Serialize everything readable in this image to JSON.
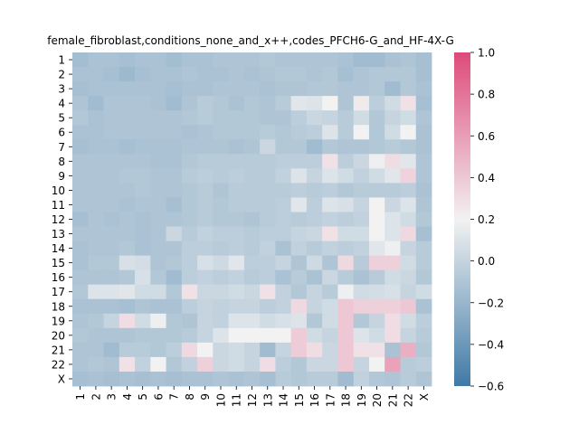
{
  "chart_data": {
    "type": "heatmap",
    "title": "female_fibroblast,conditions_none_and_x++,codes_PFCH6-G_and_HF-4X-G",
    "xlabel": "",
    "ylabel": "",
    "x_categories": [
      "1",
      "2",
      "3",
      "4",
      "5",
      "6",
      "7",
      "8",
      "9",
      "10",
      "11",
      "12",
      "13",
      "14",
      "15",
      "16",
      "17",
      "18",
      "19",
      "20",
      "21",
      "22",
      "X"
    ],
    "y_categories": [
      "1",
      "2",
      "3",
      "4",
      "5",
      "6",
      "7",
      "8",
      "9",
      "10",
      "11",
      "12",
      "13",
      "14",
      "15",
      "16",
      "17",
      "18",
      "19",
      "20",
      "21",
      "22",
      "X"
    ],
    "colorbar": {
      "min": -0.6,
      "max": 1.0,
      "ticks": [
        -0.6,
        -0.4,
        -0.2,
        0.0,
        0.2,
        0.4,
        0.6,
        0.8,
        1.0
      ],
      "low_color": "#3f7aa6",
      "mid_color": "#f2f2f2",
      "high_color": "#de4a7a",
      "center": 0.2
    },
    "values": [
      [
        -0.15,
        -0.12,
        -0.12,
        -0.14,
        -0.12,
        -0.12,
        -0.15,
        -0.12,
        -0.12,
        -0.1,
        -0.1,
        -0.1,
        -0.08,
        -0.1,
        -0.1,
        -0.1,
        -0.1,
        -0.12,
        -0.16,
        -0.16,
        -0.12,
        -0.1,
        -0.14
      ],
      [
        -0.12,
        -0.12,
        -0.14,
        -0.18,
        -0.14,
        -0.12,
        -0.12,
        -0.1,
        -0.12,
        -0.12,
        -0.1,
        -0.12,
        -0.1,
        -0.08,
        -0.08,
        -0.1,
        -0.08,
        -0.14,
        -0.1,
        -0.08,
        -0.08,
        -0.08,
        -0.14
      ],
      [
        -0.14,
        -0.12,
        -0.12,
        -0.12,
        -0.12,
        -0.12,
        -0.14,
        -0.12,
        -0.12,
        -0.1,
        -0.1,
        -0.1,
        -0.12,
        -0.1,
        -0.1,
        -0.08,
        -0.08,
        -0.1,
        -0.1,
        -0.08,
        -0.16,
        -0.08,
        -0.12
      ],
      [
        -0.1,
        -0.16,
        -0.1,
        -0.1,
        -0.1,
        -0.12,
        -0.16,
        -0.1,
        -0.06,
        -0.08,
        -0.12,
        -0.08,
        -0.1,
        -0.06,
        0.12,
        0.1,
        0.2,
        -0.1,
        0.24,
        -0.04,
        0.05,
        0.28,
        -0.14
      ],
      [
        -0.08,
        -0.12,
        -0.1,
        -0.1,
        -0.1,
        -0.1,
        -0.1,
        -0.08,
        -0.06,
        -0.08,
        -0.08,
        -0.08,
        -0.1,
        -0.1,
        -0.04,
        0.02,
        0.0,
        -0.06,
        0.05,
        -0.08,
        0.0,
        0.05,
        -0.1
      ],
      [
        -0.12,
        -0.12,
        -0.1,
        -0.1,
        -0.1,
        -0.1,
        -0.1,
        -0.12,
        -0.1,
        -0.08,
        -0.08,
        -0.08,
        -0.06,
        -0.08,
        -0.06,
        -0.04,
        0.1,
        -0.06,
        0.2,
        -0.08,
        0.05,
        0.2,
        -0.12
      ],
      [
        -0.14,
        -0.12,
        -0.12,
        -0.14,
        -0.12,
        -0.12,
        -0.12,
        -0.1,
        -0.1,
        -0.1,
        -0.12,
        -0.1,
        0.02,
        -0.08,
        -0.08,
        -0.16,
        -0.08,
        -0.1,
        -0.1,
        -0.08,
        -0.06,
        -0.08,
        -0.12
      ],
      [
        -0.1,
        -0.1,
        -0.1,
        -0.1,
        -0.1,
        -0.12,
        -0.12,
        -0.08,
        -0.06,
        -0.06,
        -0.06,
        -0.06,
        -0.06,
        -0.04,
        -0.04,
        -0.04,
        0.28,
        -0.04,
        0.02,
        0.18,
        0.3,
        0.12,
        -0.1
      ],
      [
        -0.1,
        -0.1,
        -0.1,
        -0.08,
        -0.08,
        -0.1,
        -0.1,
        -0.06,
        -0.04,
        -0.06,
        -0.04,
        -0.06,
        -0.06,
        -0.02,
        0.1,
        0.0,
        0.1,
        0.05,
        -0.02,
        0.05,
        0.12,
        0.35,
        -0.1
      ],
      [
        -0.1,
        -0.1,
        -0.1,
        -0.1,
        -0.08,
        -0.1,
        -0.1,
        -0.08,
        -0.06,
        -0.1,
        -0.06,
        -0.06,
        -0.06,
        -0.06,
        -0.04,
        -0.06,
        -0.04,
        -0.08,
        -0.06,
        -0.06,
        -0.06,
        -0.04,
        -0.12
      ],
      [
        -0.1,
        -0.1,
        -0.1,
        -0.12,
        -0.1,
        -0.1,
        -0.14,
        -0.08,
        -0.06,
        -0.08,
        -0.06,
        -0.06,
        -0.06,
        -0.04,
        0.12,
        -0.04,
        0.1,
        0.08,
        0.0,
        0.2,
        0.02,
        0.1,
        -0.1
      ],
      [
        -0.14,
        -0.1,
        -0.12,
        -0.1,
        -0.12,
        -0.1,
        -0.1,
        -0.08,
        -0.06,
        -0.08,
        -0.08,
        -0.1,
        -0.06,
        -0.04,
        -0.06,
        -0.04,
        -0.02,
        -0.04,
        -0.02,
        0.2,
        0.1,
        0.05,
        -0.08
      ],
      [
        -0.1,
        -0.1,
        -0.1,
        -0.1,
        -0.12,
        -0.1,
        0.02,
        -0.06,
        -0.02,
        -0.04,
        -0.04,
        -0.06,
        -0.04,
        -0.04,
        0.0,
        0.02,
        0.28,
        0.05,
        0.05,
        0.2,
        0.1,
        0.32,
        -0.14
      ],
      [
        -0.12,
        -0.1,
        -0.1,
        -0.08,
        -0.12,
        -0.1,
        -0.1,
        -0.04,
        -0.04,
        -0.06,
        -0.04,
        -0.06,
        -0.02,
        -0.12,
        -0.02,
        -0.06,
        -0.02,
        -0.04,
        -0.02,
        0.12,
        0.18,
        0.0,
        -0.06
      ],
      [
        -0.12,
        -0.08,
        -0.08,
        0.08,
        0.06,
        -0.1,
        -0.08,
        -0.04,
        0.08,
        0.04,
        0.12,
        -0.04,
        -0.04,
        0.0,
        -0.1,
        0.04,
        -0.1,
        0.32,
        -0.06,
        0.36,
        0.36,
        0.05,
        -0.06
      ],
      [
        -0.1,
        -0.1,
        -0.1,
        -0.08,
        0.08,
        -0.08,
        -0.16,
        -0.04,
        -0.02,
        -0.04,
        -0.02,
        -0.06,
        -0.04,
        -0.12,
        -0.06,
        -0.12,
        0.02,
        -0.06,
        -0.12,
        -0.06,
        0.05,
        0.02,
        -0.08
      ],
      [
        -0.08,
        0.1,
        0.1,
        0.12,
        0.05,
        0.05,
        -0.08,
        0.28,
        0.02,
        0.02,
        0.05,
        0.02,
        0.28,
        -0.02,
        -0.08,
        0.0,
        -0.06,
        0.18,
        0.05,
        0.06,
        0.08,
        0.0,
        0.05
      ],
      [
        -0.12,
        -0.12,
        -0.12,
        -0.14,
        -0.1,
        -0.12,
        -0.12,
        -0.04,
        0.0,
        -0.02,
        0.0,
        0.0,
        -0.04,
        -0.02,
        0.32,
        0.0,
        0.05,
        0.4,
        0.36,
        0.36,
        0.36,
        0.4,
        -0.12
      ],
      [
        -0.1,
        -0.08,
        0.0,
        0.3,
        0.05,
        0.18,
        -0.08,
        -0.1,
        0.0,
        -0.02,
        0.1,
        0.1,
        0.05,
        0.08,
        0.1,
        -0.08,
        0.05,
        0.4,
        -0.08,
        0.0,
        0.3,
        0.05,
        -0.04
      ],
      [
        -0.08,
        -0.1,
        -0.1,
        -0.1,
        -0.08,
        -0.08,
        -0.08,
        -0.06,
        0.0,
        0.1,
        0.2,
        0.2,
        0.2,
        0.2,
        0.38,
        0.05,
        0.0,
        0.4,
        0.1,
        0.05,
        0.3,
        0.0,
        -0.06
      ],
      [
        -0.1,
        -0.1,
        -0.16,
        -0.06,
        -0.06,
        -0.08,
        -0.04,
        0.32,
        0.2,
        0.02,
        0.05,
        0.0,
        -0.16,
        0.0,
        0.38,
        0.3,
        0.02,
        0.4,
        0.28,
        0.28,
        -0.12,
        0.52,
        -0.08
      ],
      [
        -0.1,
        -0.08,
        -0.1,
        0.28,
        -0.02,
        0.2,
        -0.08,
        -0.02,
        0.36,
        0.02,
        0.05,
        0.0,
        0.3,
        -0.04,
        -0.08,
        0.02,
        0.02,
        0.4,
        0.0,
        0.2,
        0.58,
        -0.06,
        -0.04
      ],
      [
        -0.14,
        -0.12,
        -0.14,
        -0.12,
        -0.14,
        -0.12,
        -0.14,
        -0.12,
        -0.12,
        -0.1,
        -0.12,
        -0.1,
        -0.14,
        -0.06,
        -0.08,
        -0.06,
        -0.06,
        -0.16,
        -0.02,
        -0.08,
        -0.1,
        -0.06,
        -0.1
      ]
    ]
  }
}
